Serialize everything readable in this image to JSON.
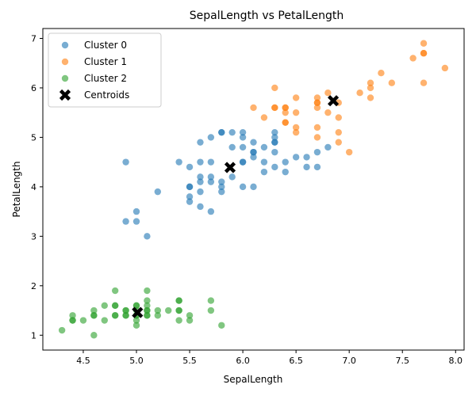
{
  "chart_data": {
    "type": "scatter",
    "title": "SepalLength vs PetalLength",
    "xlabel": "SepalLength",
    "ylabel": "PetalLength",
    "xlim": [
      4.12,
      8.08
    ],
    "ylim": [
      0.7,
      7.2
    ],
    "xticks": [
      "4.5",
      "5.0",
      "5.5",
      "6.0",
      "6.5",
      "7.0",
      "7.5",
      "8.0"
    ],
    "yticks": [
      "1",
      "2",
      "3",
      "4",
      "5",
      "6",
      "7"
    ],
    "grid": false,
    "legend": "top-left",
    "series": [
      {
        "name": "Cluster 0",
        "color": "#1f77b4",
        "marker": "circle",
        "points": [
          [
            4.9,
            4.5
          ],
          [
            4.9,
            3.3
          ],
          [
            5.0,
            3.3
          ],
          [
            5.0,
            3.5
          ],
          [
            5.1,
            3.0
          ],
          [
            5.2,
            3.9
          ],
          [
            5.4,
            4.5
          ],
          [
            5.5,
            4.4
          ],
          [
            5.5,
            4.0
          ],
          [
            5.5,
            4.0
          ],
          [
            5.5,
            3.8
          ],
          [
            5.5,
            3.7
          ],
          [
            5.6,
            4.9
          ],
          [
            5.6,
            4.5
          ],
          [
            5.6,
            4.2
          ],
          [
            5.6,
            4.1
          ],
          [
            5.6,
            3.9
          ],
          [
            5.6,
            3.6
          ],
          [
            5.7,
            5.0
          ],
          [
            5.7,
            4.5
          ],
          [
            5.7,
            4.2
          ],
          [
            5.7,
            4.1
          ],
          [
            5.7,
            3.5
          ],
          [
            5.8,
            5.1
          ],
          [
            5.8,
            5.1
          ],
          [
            5.8,
            4.1
          ],
          [
            5.8,
            4.0
          ],
          [
            5.8,
            3.9
          ],
          [
            5.9,
            5.1
          ],
          [
            5.9,
            4.8
          ],
          [
            5.9,
            4.2
          ],
          [
            6.0,
            5.1
          ],
          [
            6.0,
            5.0
          ],
          [
            6.0,
            4.8
          ],
          [
            6.0,
            4.5
          ],
          [
            6.0,
            4.5
          ],
          [
            6.0,
            4.0
          ],
          [
            6.1,
            4.9
          ],
          [
            6.1,
            4.7
          ],
          [
            6.1,
            4.7
          ],
          [
            6.1,
            4.6
          ],
          [
            6.1,
            4.0
          ],
          [
            6.2,
            4.8
          ],
          [
            6.2,
            4.5
          ],
          [
            6.2,
            4.3
          ],
          [
            6.3,
            5.1
          ],
          [
            6.3,
            5.0
          ],
          [
            6.3,
            4.9
          ],
          [
            6.3,
            4.9
          ],
          [
            6.3,
            4.7
          ],
          [
            6.3,
            4.4
          ],
          [
            6.4,
            4.5
          ],
          [
            6.4,
            4.3
          ],
          [
            6.5,
            4.6
          ],
          [
            6.6,
            4.6
          ],
          [
            6.6,
            4.4
          ],
          [
            6.7,
            4.7
          ],
          [
            6.7,
            4.4
          ],
          [
            6.8,
            4.8
          ]
        ]
      },
      {
        "name": "Cluster 1",
        "color": "#ff7f0e",
        "marker": "circle",
        "points": [
          [
            6.1,
            5.6
          ],
          [
            6.2,
            5.4
          ],
          [
            6.3,
            6.0
          ],
          [
            6.3,
            5.6
          ],
          [
            6.3,
            5.6
          ],
          [
            6.4,
            5.6
          ],
          [
            6.4,
            5.6
          ],
          [
            6.4,
            5.5
          ],
          [
            6.4,
            5.3
          ],
          [
            6.4,
            5.3
          ],
          [
            6.5,
            5.8
          ],
          [
            6.5,
            5.5
          ],
          [
            6.5,
            5.2
          ],
          [
            6.5,
            5.1
          ],
          [
            6.7,
            5.8
          ],
          [
            6.7,
            5.7
          ],
          [
            6.7,
            5.7
          ],
          [
            6.7,
            5.6
          ],
          [
            6.7,
            5.2
          ],
          [
            6.7,
            5.0
          ],
          [
            6.8,
            5.9
          ],
          [
            6.8,
            5.5
          ],
          [
            6.9,
            5.7
          ],
          [
            6.9,
            5.4
          ],
          [
            6.9,
            5.1
          ],
          [
            6.9,
            4.9
          ],
          [
            7.0,
            4.7
          ],
          [
            7.1,
            5.9
          ],
          [
            7.2,
            6.1
          ],
          [
            7.2,
            6.0
          ],
          [
            7.2,
            5.8
          ],
          [
            7.3,
            6.3
          ],
          [
            7.4,
            6.1
          ],
          [
            7.6,
            6.6
          ],
          [
            7.7,
            6.9
          ],
          [
            7.7,
            6.7
          ],
          [
            7.7,
            6.7
          ],
          [
            7.7,
            6.1
          ],
          [
            7.9,
            6.4
          ]
        ]
      },
      {
        "name": "Cluster 2",
        "color": "#2ca02c",
        "marker": "circle",
        "points": [
          [
            4.3,
            1.1
          ],
          [
            4.4,
            1.4
          ],
          [
            4.4,
            1.3
          ],
          [
            4.4,
            1.3
          ],
          [
            4.5,
            1.3
          ],
          [
            4.6,
            1.5
          ],
          [
            4.6,
            1.4
          ],
          [
            4.6,
            1.4
          ],
          [
            4.6,
            1.0
          ],
          [
            4.7,
            1.6
          ],
          [
            4.7,
            1.3
          ],
          [
            4.8,
            1.9
          ],
          [
            4.8,
            1.6
          ],
          [
            4.8,
            1.6
          ],
          [
            4.8,
            1.4
          ],
          [
            4.8,
            1.4
          ],
          [
            4.9,
            1.5
          ],
          [
            4.9,
            1.5
          ],
          [
            4.9,
            1.4
          ],
          [
            4.9,
            1.4
          ],
          [
            5.0,
            1.6
          ],
          [
            5.0,
            1.6
          ],
          [
            5.0,
            1.5
          ],
          [
            5.0,
            1.4
          ],
          [
            5.0,
            1.4
          ],
          [
            5.0,
            1.3
          ],
          [
            5.0,
            1.2
          ],
          [
            5.1,
            1.9
          ],
          [
            5.1,
            1.7
          ],
          [
            5.1,
            1.6
          ],
          [
            5.1,
            1.5
          ],
          [
            5.1,
            1.5
          ],
          [
            5.1,
            1.4
          ],
          [
            5.1,
            1.4
          ],
          [
            5.2,
            1.5
          ],
          [
            5.2,
            1.4
          ],
          [
            5.3,
            1.5
          ],
          [
            5.4,
            1.7
          ],
          [
            5.4,
            1.7
          ],
          [
            5.4,
            1.5
          ],
          [
            5.4,
            1.5
          ],
          [
            5.4,
            1.3
          ],
          [
            5.5,
            1.4
          ],
          [
            5.5,
            1.3
          ],
          [
            5.7,
            1.7
          ],
          [
            5.7,
            1.5
          ],
          [
            5.8,
            1.2
          ]
        ]
      },
      {
        "name": "Centroids",
        "color": "#000000",
        "marker": "X",
        "points": [
          [
            5.88,
            4.39
          ],
          [
            6.85,
            5.74
          ],
          [
            5.01,
            1.46
          ]
        ]
      }
    ]
  }
}
